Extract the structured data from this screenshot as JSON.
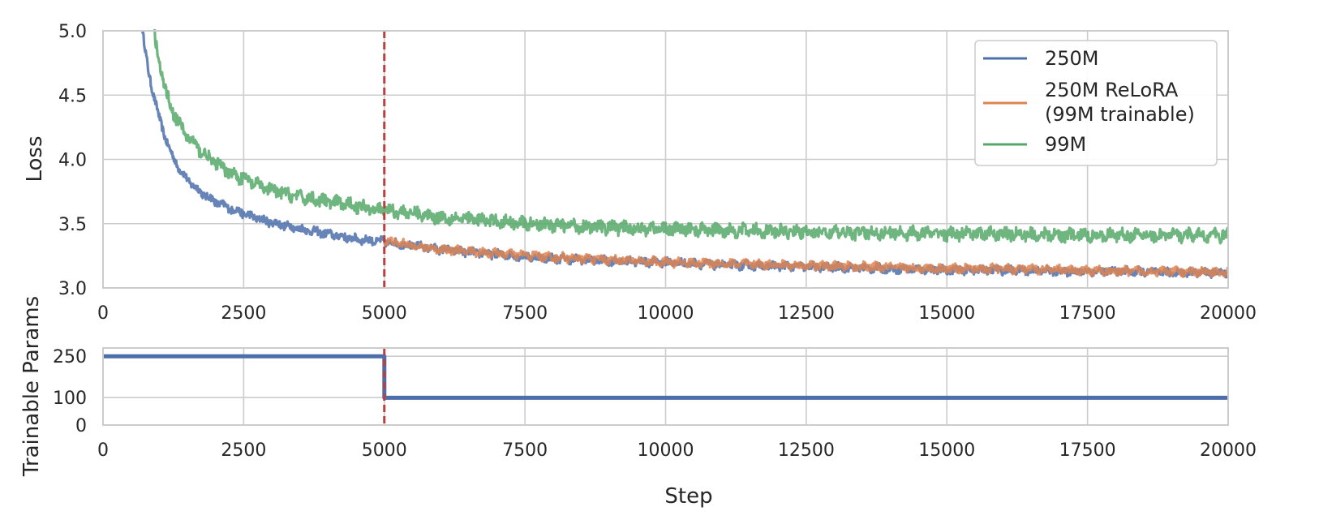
{
  "chart_data": [
    {
      "type": "line",
      "ylabel": "Loss",
      "xlim": [
        0,
        20000
      ],
      "ylim": [
        3.0,
        5.0
      ],
      "xticks": [
        "0",
        "2500",
        "5000",
        "7500",
        "10000",
        "12500",
        "15000",
        "17500",
        "20000"
      ],
      "yticks": [
        "3.0",
        "3.5",
        "4.0",
        "4.5",
        "5.0"
      ],
      "grid": true,
      "legend_position": "top-right",
      "vline": {
        "x": 5000,
        "color": "#b84040",
        "style": "dashed"
      },
      "series": [
        {
          "name": "250M",
          "color": "#4c6eab",
          "x": [
            700,
            800,
            900,
            1000,
            1100,
            1200,
            1300,
            1400,
            1500,
            1750,
            2000,
            2250,
            2500,
            2750,
            3000,
            3500,
            4000,
            4500,
            5000,
            5500,
            6000,
            7000,
            8000,
            9000,
            10000,
            11000,
            12000,
            13000,
            14000,
            15000,
            16000,
            17000,
            18000,
            19000,
            20000
          ],
          "y": [
            5.0,
            4.7,
            4.5,
            4.32,
            4.18,
            4.06,
            3.97,
            3.9,
            3.84,
            3.74,
            3.67,
            3.62,
            3.58,
            3.54,
            3.51,
            3.46,
            3.42,
            3.38,
            3.36,
            3.33,
            3.3,
            3.26,
            3.23,
            3.21,
            3.2,
            3.18,
            3.17,
            3.16,
            3.15,
            3.14,
            3.14,
            3.13,
            3.13,
            3.12,
            3.12
          ]
        },
        {
          "name": "250M ReLoRA\n(99M trainable)",
          "legend_lines": [
            "250M ReLoRA",
            "(99M trainable)"
          ],
          "color": "#dd8452",
          "x": [
            5000,
            5500,
            6000,
            7000,
            8000,
            9000,
            10000,
            11000,
            12000,
            13000,
            14000,
            15000,
            16000,
            17000,
            18000,
            19000,
            20000
          ],
          "y": [
            3.37,
            3.33,
            3.3,
            3.27,
            3.24,
            3.22,
            3.2,
            3.19,
            3.18,
            3.17,
            3.16,
            3.15,
            3.15,
            3.14,
            3.13,
            3.13,
            3.12
          ]
        },
        {
          "name": "99M",
          "color": "#55a868",
          "x": [
            900,
            1000,
            1100,
            1200,
            1300,
            1400,
            1500,
            1750,
            2000,
            2250,
            2500,
            2750,
            3000,
            3500,
            4000,
            4500,
            5000,
            5500,
            6000,
            7000,
            8000,
            9000,
            10000,
            11000,
            12000,
            13000,
            14000,
            15000,
            16000,
            17000,
            18000,
            19000,
            20000
          ],
          "y": [
            5.0,
            4.75,
            4.55,
            4.42,
            4.32,
            4.24,
            4.18,
            4.06,
            3.97,
            3.9,
            3.85,
            3.8,
            3.76,
            3.71,
            3.67,
            3.64,
            3.61,
            3.58,
            3.55,
            3.52,
            3.49,
            3.47,
            3.46,
            3.45,
            3.44,
            3.43,
            3.43,
            3.42,
            3.42,
            3.41,
            3.41,
            3.41,
            3.41
          ]
        }
      ]
    },
    {
      "type": "line",
      "xlabel": "Step",
      "ylabel": "Trainable Params",
      "xlim": [
        0,
        20000
      ],
      "ylim": [
        0,
        280
      ],
      "xticks": [
        "0",
        "2500",
        "5000",
        "7500",
        "10000",
        "12500",
        "15000",
        "17500",
        "20000"
      ],
      "yticks": [
        "0",
        "100",
        "250"
      ],
      "grid": true,
      "vline": {
        "x": 5000,
        "color": "#b84040",
        "style": "dashed"
      },
      "series": [
        {
          "color": "#4c6eab",
          "x": [
            0,
            5000,
            5000,
            20000
          ],
          "y": [
            250,
            250,
            99,
            99
          ]
        }
      ]
    }
  ]
}
